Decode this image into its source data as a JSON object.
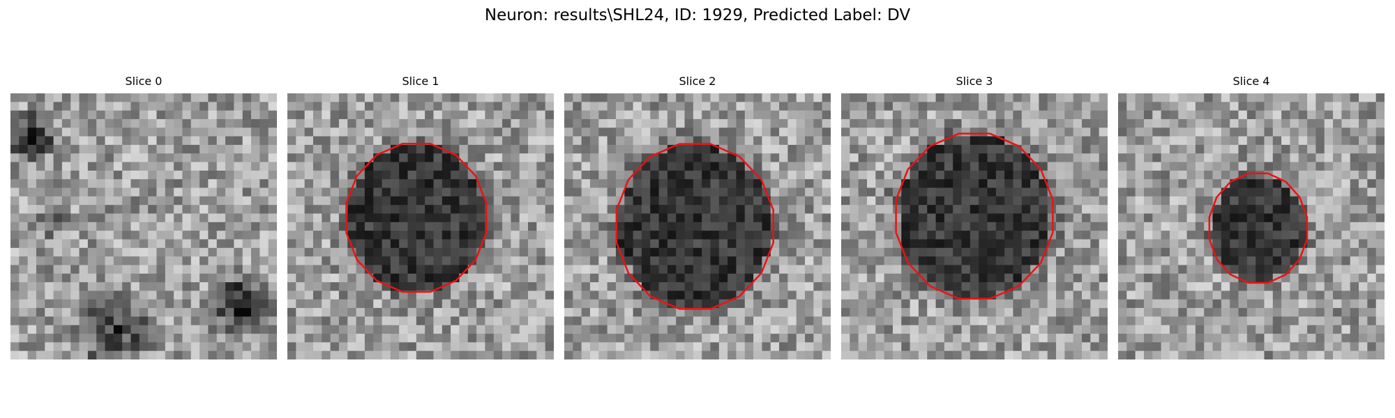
{
  "figure": {
    "title": "Neuron: results\\SHL24, ID: 1929, Predicted Label: DV"
  },
  "colors": {
    "contour": "#ee1111",
    "background": "#ffffff"
  },
  "panels": [
    {
      "title": "Slice 0",
      "has_contour": false,
      "seed": 11
    },
    {
      "title": "Slice 1",
      "has_contour": true,
      "seed": 23
    },
    {
      "title": "Slice 2",
      "has_contour": true,
      "seed": 37
    },
    {
      "title": "Slice 3",
      "has_contour": true,
      "seed": 53
    },
    {
      "title": "Slice 4",
      "has_contour": true,
      "seed": 71
    }
  ]
}
